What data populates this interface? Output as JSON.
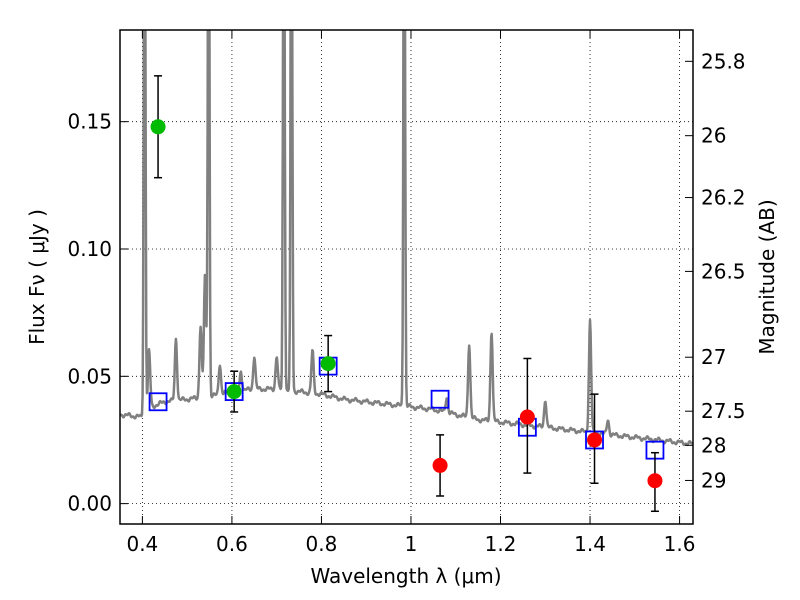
{
  "chart_data": {
    "type": "scatter",
    "xlabel": "Wavelength  λ (μm)",
    "ylabel": "Flux  Fν  ( μJy )",
    "y2label": "Magnitude (AB)",
    "xlim": [
      0.35,
      1.63
    ],
    "ylim": [
      -0.008,
      0.186
    ],
    "grid": true,
    "x_ticks": [
      0.4,
      0.6,
      0.8,
      1.0,
      1.2,
      1.4,
      1.6
    ],
    "x_tick_labels": [
      "0.4",
      "0.6",
      "0.8",
      "1",
      "1.2",
      "1.4",
      "1.6"
    ],
    "y_ticks": [
      0.0,
      0.05,
      0.1,
      0.15
    ],
    "y_tick_labels": [
      "0.00",
      "0.05",
      "0.10",
      "0.15"
    ],
    "y2_ticks": [
      {
        "label": "25.8",
        "flux": 0.1737
      },
      {
        "label": "26",
        "flux": 0.1445
      },
      {
        "label": "26.2",
        "flux": 0.1202
      },
      {
        "label": "26.5",
        "flux": 0.0912
      },
      {
        "label": "27",
        "flux": 0.0575
      },
      {
        "label": "27.5",
        "flux": 0.0363
      },
      {
        "label": "28",
        "flux": 0.0229
      },
      {
        "label": "29",
        "flux": 0.0091
      }
    ],
    "series": [
      {
        "kind": "line",
        "color": "#808080",
        "baseline": [
          [
            0.35,
            0.035
          ],
          [
            0.4,
            0.034
          ],
          [
            0.42,
            0.038
          ],
          [
            0.45,
            0.04
          ],
          [
            0.5,
            0.041
          ],
          [
            0.55,
            0.042
          ],
          [
            0.6,
            0.044
          ],
          [
            0.65,
            0.045
          ],
          [
            0.7,
            0.045
          ],
          [
            0.75,
            0.044
          ],
          [
            0.8,
            0.043
          ],
          [
            0.85,
            0.041
          ],
          [
            0.9,
            0.04
          ],
          [
            0.95,
            0.039
          ],
          [
            1.0,
            0.038
          ],
          [
            1.05,
            0.037
          ],
          [
            1.1,
            0.035
          ],
          [
            1.15,
            0.033
          ],
          [
            1.2,
            0.032
          ],
          [
            1.25,
            0.031
          ],
          [
            1.3,
            0.03
          ],
          [
            1.35,
            0.029
          ],
          [
            1.4,
            0.028
          ],
          [
            1.45,
            0.027
          ],
          [
            1.5,
            0.026
          ],
          [
            1.55,
            0.025
          ],
          [
            1.6,
            0.024
          ],
          [
            1.63,
            0.0235
          ]
        ],
        "emission_lines": [
          [
            0.405,
            0.3
          ],
          [
            0.415,
            0.06
          ],
          [
            0.475,
            0.065
          ],
          [
            0.53,
            0.07
          ],
          [
            0.54,
            0.09
          ],
          [
            0.548,
            0.3
          ],
          [
            0.573,
            0.055
          ],
          [
            0.62,
            0.052
          ],
          [
            0.65,
            0.058
          ],
          [
            0.7,
            0.058
          ],
          [
            0.716,
            0.3
          ],
          [
            0.733,
            0.3
          ],
          [
            0.78,
            0.06
          ],
          [
            0.985,
            0.3
          ],
          [
            1.08,
            0.042
          ],
          [
            1.13,
            0.063
          ],
          [
            1.18,
            0.068
          ],
          [
            1.3,
            0.041
          ],
          [
            1.4,
            0.072
          ],
          [
            1.44,
            0.033
          ]
        ]
      },
      {
        "kind": "model-points",
        "marker": "open-square",
        "color": "#0000ff",
        "x": [
          0.435,
          0.605,
          0.815,
          1.065,
          1.26,
          1.41,
          1.545
        ],
        "y": [
          0.04,
          0.044,
          0.054,
          0.041,
          0.03,
          0.025,
          0.021
        ]
      },
      {
        "kind": "observed-detections",
        "marker": "filled-circle",
        "color": "#00bb00",
        "x": [
          0.435,
          0.605,
          0.815
        ],
        "y": [
          0.148,
          0.044,
          0.055
        ],
        "yerr_low": [
          0.128,
          0.036,
          0.044
        ],
        "yerr_high": [
          0.168,
          0.052,
          0.066
        ]
      },
      {
        "kind": "observed-weak",
        "marker": "filled-circle",
        "color": "#ff0000",
        "x": [
          1.065,
          1.26,
          1.41,
          1.545
        ],
        "y": [
          0.015,
          0.034,
          0.025,
          0.009
        ],
        "yerr_low": [
          0.003,
          0.012,
          0.008,
          -0.003
        ],
        "yerr_high": [
          0.027,
          0.057,
          0.043,
          0.02
        ]
      }
    ]
  }
}
